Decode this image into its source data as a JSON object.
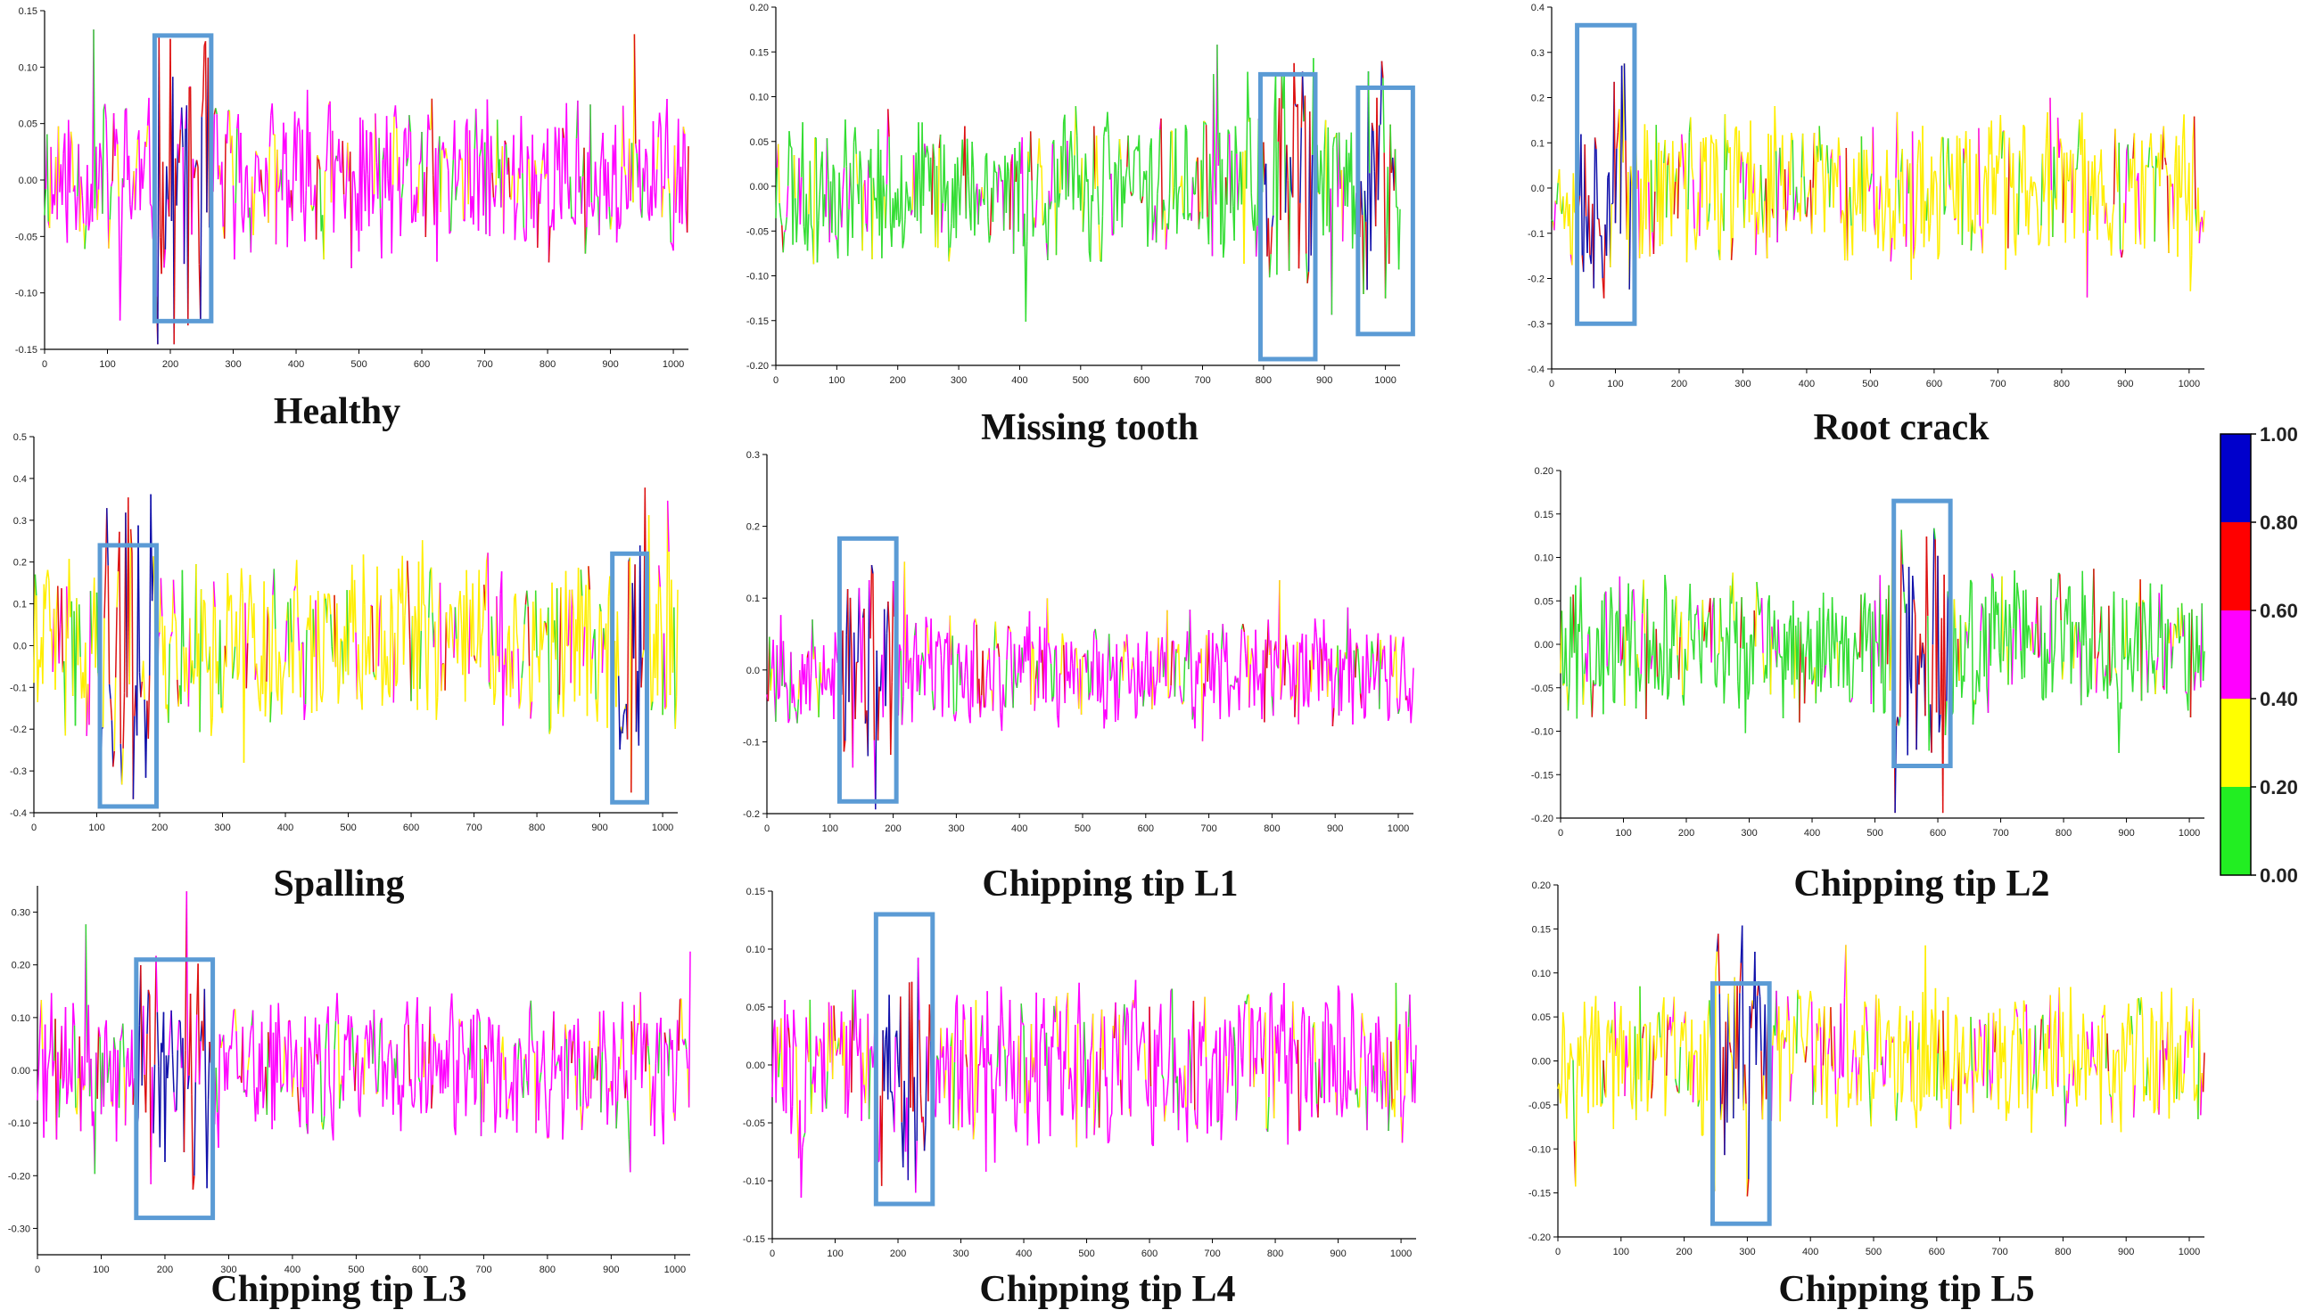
{
  "chart_data": [
    {
      "type": "line",
      "title": "Healthy",
      "ylim": [
        -0.15,
        0.15
      ],
      "yticks": [
        -0.15,
        -0.1,
        -0.05,
        0.0,
        0.05,
        0.1,
        0.15
      ],
      "xlim": [
        0,
        1024
      ],
      "xticks": [
        0,
        100,
        200,
        300,
        400,
        500,
        600,
        700,
        800,
        900,
        1000
      ],
      "amp": 0.06,
      "seed": 11,
      "dominant": "#ff00ff",
      "highlights": [
        {
          "x0": 175,
          "x1": 265,
          "y0": -0.125,
          "y1": 0.128
        }
      ]
    },
    {
      "type": "line",
      "title": "Missing tooth",
      "ylim": [
        -0.2,
        0.2
      ],
      "yticks": [
        -0.2,
        -0.15,
        -0.1,
        -0.05,
        0.0,
        0.05,
        0.1,
        0.15,
        0.2
      ],
      "xlim": [
        0,
        1024
      ],
      "xticks": [
        0,
        100,
        200,
        300,
        400,
        500,
        600,
        700,
        800,
        900,
        1000
      ],
      "amp": 0.07,
      "seed": 23,
      "dominant": "#33dd33",
      "highlights": [
        {
          "x0": 795,
          "x1": 885,
          "y0": -0.193,
          "y1": 0.125
        },
        {
          "x0": 955,
          "x1": 1045,
          "y0": -0.165,
          "y1": 0.11
        }
      ]
    },
    {
      "type": "line",
      "title": "Root crack",
      "ylim": [
        -0.4,
        0.4
      ],
      "yticks": [
        -0.4,
        -0.3,
        -0.2,
        -0.1,
        0.0,
        0.1,
        0.2,
        0.3,
        0.4
      ],
      "xlim": [
        0,
        1024
      ],
      "xticks": [
        0,
        100,
        200,
        300,
        400,
        500,
        600,
        700,
        800,
        900,
        1000
      ],
      "amp": 0.14,
      "seed": 37,
      "dominant": "#ffee00",
      "highlights": [
        {
          "x0": 40,
          "x1": 130,
          "y0": -0.3,
          "y1": 0.36
        }
      ]
    },
    {
      "type": "line",
      "title": "Spalling",
      "ylim": [
        -0.4,
        0.5
      ],
      "yticks": [
        -0.4,
        -0.3,
        -0.2,
        -0.1,
        0.0,
        0.1,
        0.2,
        0.3,
        0.4,
        0.5
      ],
      "xlim": [
        0,
        1024
      ],
      "xticks": [
        0,
        100,
        200,
        300,
        400,
        500,
        600,
        700,
        800,
        900,
        1000
      ],
      "amp": 0.18,
      "seed": 41,
      "dominant": "#ffee00",
      "highlights": [
        {
          "x0": 105,
          "x1": 195,
          "y0": -0.385,
          "y1": 0.24
        },
        {
          "x0": 920,
          "x1": 975,
          "y0": -0.375,
          "y1": 0.22
        }
      ]
    },
    {
      "type": "line",
      "title": "Chipping tip L1",
      "ylim": [
        -0.2,
        0.3
      ],
      "yticks": [
        -0.2,
        -0.1,
        0.0,
        0.1,
        0.2,
        0.3
      ],
      "xlim": [
        0,
        1024
      ],
      "xticks": [
        0,
        100,
        200,
        300,
        400,
        500,
        600,
        700,
        800,
        900,
        1000
      ],
      "amp": 0.07,
      "seed": 53,
      "dominant": "#ff00ff",
      "highlights": [
        {
          "x0": 115,
          "x1": 205,
          "y0": -0.183,
          "y1": 0.183
        }
      ]
    },
    {
      "type": "line",
      "title": "Chipping tip L2",
      "ylim": [
        -0.2,
        0.2
      ],
      "yticks": [
        -0.2,
        -0.15,
        -0.1,
        -0.05,
        0.0,
        0.05,
        0.1,
        0.15,
        0.2
      ],
      "xlim": [
        0,
        1024
      ],
      "xticks": [
        0,
        100,
        200,
        300,
        400,
        500,
        600,
        700,
        800,
        900,
        1000
      ],
      "amp": 0.07,
      "seed": 67,
      "dominant": "#33dd33",
      "highlights": [
        {
          "x0": 530,
          "x1": 620,
          "y0": -0.14,
          "y1": 0.165
        }
      ]
    },
    {
      "type": "line",
      "title": "Chipping tip L3",
      "ylim": [
        -0.35,
        0.35
      ],
      "yticks": [
        -0.3,
        -0.2,
        -0.1,
        0.0,
        0.1,
        0.2,
        0.3
      ],
      "xlim": [
        0,
        1024
      ],
      "xticks": [
        0,
        100,
        200,
        300,
        400,
        500,
        600,
        700,
        800,
        900,
        1000
      ],
      "amp": 0.12,
      "seed": 71,
      "dominant": "#ff00ff",
      "highlights": [
        {
          "x0": 155,
          "x1": 275,
          "y0": -0.28,
          "y1": 0.21
        }
      ]
    },
    {
      "type": "line",
      "title": "Chipping tip L4",
      "ylim": [
        -0.15,
        0.15
      ],
      "yticks": [
        -0.15,
        -0.1,
        -0.05,
        0.0,
        0.05,
        0.1,
        0.15
      ],
      "xlim": [
        0,
        1024
      ],
      "xticks": [
        0,
        100,
        200,
        300,
        400,
        500,
        600,
        700,
        800,
        900,
        1000
      ],
      "amp": 0.06,
      "seed": 83,
      "dominant": "#ff00ff",
      "highlights": [
        {
          "x0": 165,
          "x1": 255,
          "y0": -0.12,
          "y1": 0.13
        }
      ]
    },
    {
      "type": "line",
      "title": "Chipping tip L5",
      "ylim": [
        -0.2,
        0.2
      ],
      "yticks": [
        -0.2,
        -0.15,
        -0.1,
        -0.05,
        0.0,
        0.05,
        0.1,
        0.15,
        0.2
      ],
      "xlim": [
        0,
        1024
      ],
      "xticks": [
        0,
        100,
        200,
        300,
        400,
        500,
        600,
        700,
        800,
        900,
        1000
      ],
      "amp": 0.07,
      "seed": 97,
      "dominant": "#ffee00",
      "highlights": [
        {
          "x0": 245,
          "x1": 335,
          "y0": -0.185,
          "y1": 0.088
        }
      ]
    }
  ],
  "colorbar": {
    "labels": [
      "0.00",
      "0.20",
      "0.40",
      "0.60",
      "0.80",
      "1.00"
    ],
    "colors": [
      "#22ee22",
      "#ffff00",
      "#ff00ff",
      "#ff0000",
      "#0000cc"
    ]
  },
  "palette": {
    "green": "#33dd33",
    "yellow": "#ffee00",
    "magenta": "#ff00ff",
    "red": "#dd1111",
    "blue": "#1111aa",
    "box": "#5b9bd5"
  }
}
